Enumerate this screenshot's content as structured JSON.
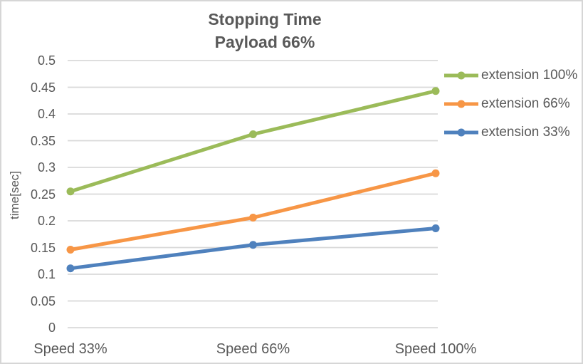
{
  "frame": {
    "border_color": "#d6d6d6",
    "background_color": "#ffffff",
    "text_color": "#595959"
  },
  "chart_data": {
    "type": "line",
    "title": "Stopping Time",
    "subtitle": "Payload 66%",
    "categories": [
      "Speed 33%",
      "Speed 66%",
      "Speed 100%"
    ],
    "series": [
      {
        "name": "extension 100%",
        "color": "#9BBB59",
        "values": [
          0.255,
          0.362,
          0.443
        ]
      },
      {
        "name": "extension 66%",
        "color": "#F79646",
        "values": [
          0.146,
          0.206,
          0.289
        ]
      },
      {
        "name": "extension 33%",
        "color": "#4F81BD",
        "values": [
          0.111,
          0.155,
          0.186
        ]
      }
    ],
    "xlabel": "",
    "ylabel": "time[sec]",
    "ylim": [
      0,
      0.5
    ],
    "y_ticks": [
      "0",
      "0.05",
      "0.1",
      "0.15",
      "0.2",
      "0.25",
      "0.3",
      "0.35",
      "0.4",
      "0.45",
      "0.5"
    ],
    "grid": "horizontal",
    "gridline_color": "#D9D9D9",
    "legend_position": "right",
    "marker_style": "circle"
  }
}
